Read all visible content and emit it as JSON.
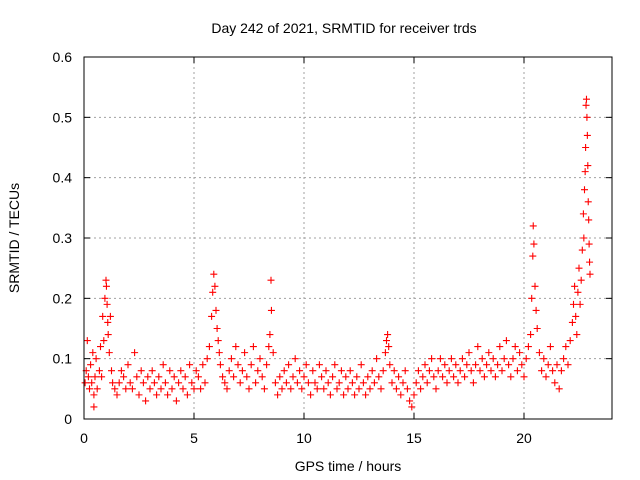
{
  "chart_data": {
    "type": "scatter",
    "title": "Day 242 of 2021, SRMTID for receiver trds",
    "xlabel": "GPS time / hours",
    "ylabel": "SRMTID / TECUs",
    "xlim": [
      0,
      24
    ],
    "ylim": [
      0,
      0.6
    ],
    "x_ticks": [
      0,
      5,
      10,
      15,
      20
    ],
    "x_tick_labels": [
      "0",
      "5",
      "10",
      "15",
      "20"
    ],
    "y_ticks": [
      0,
      0.1,
      0.2,
      0.3,
      0.4,
      0.5,
      0.6
    ],
    "y_tick_labels": [
      "0",
      "0.1",
      "0.2",
      "0.3",
      "0.4",
      "0.5",
      "0.6"
    ],
    "grid": true,
    "marker": "plus",
    "point_color": "#ff0000",
    "series": [
      {
        "name": "SRMTID",
        "points": [
          [
            0.05,
            0.06
          ],
          [
            0.1,
            0.08
          ],
          [
            0.15,
            0.13
          ],
          [
            0.2,
            0.07
          ],
          [
            0.25,
            0.05
          ],
          [
            0.3,
            0.09
          ],
          [
            0.35,
            0.06
          ],
          [
            0.4,
            0.11
          ],
          [
            0.45,
            0.04
          ],
          [
            0.5,
            0.07
          ],
          [
            0.55,
            0.1
          ],
          [
            0.6,
            0.05
          ],
          [
            0.45,
            0.02
          ],
          [
            0.7,
            0.08
          ],
          [
            0.75,
            0.12
          ],
          [
            0.8,
            0.07
          ],
          [
            0.85,
            0.17
          ],
          [
            0.9,
            0.13
          ],
          [
            0.95,
            0.2
          ],
          [
            1.0,
            0.23
          ],
          [
            1.02,
            0.22
          ],
          [
            1.05,
            0.19
          ],
          [
            1.08,
            0.16
          ],
          [
            1.1,
            0.14
          ],
          [
            1.15,
            0.11
          ],
          [
            1.2,
            0.17
          ],
          [
            1.25,
            0.08
          ],
          [
            1.3,
            0.06
          ],
          [
            1.4,
            0.05
          ],
          [
            1.5,
            0.04
          ],
          [
            1.6,
            0.06
          ],
          [
            1.7,
            0.08
          ],
          [
            1.8,
            0.07
          ],
          [
            1.9,
            0.05
          ],
          [
            2.0,
            0.09
          ],
          [
            2.1,
            0.06
          ],
          [
            2.2,
            0.05
          ],
          [
            2.3,
            0.11
          ],
          [
            2.4,
            0.07
          ],
          [
            2.5,
            0.04
          ],
          [
            2.6,
            0.08
          ],
          [
            2.7,
            0.06
          ],
          [
            2.8,
            0.03
          ],
          [
            2.9,
            0.07
          ],
          [
            3.0,
            0.05
          ],
          [
            3.1,
            0.08
          ],
          [
            3.2,
            0.06
          ],
          [
            3.3,
            0.04
          ],
          [
            3.4,
            0.07
          ],
          [
            3.5,
            0.05
          ],
          [
            3.6,
            0.09
          ],
          [
            3.7,
            0.06
          ],
          [
            3.8,
            0.04
          ],
          [
            3.9,
            0.08
          ],
          [
            4.0,
            0.05
          ],
          [
            4.1,
            0.07
          ],
          [
            4.2,
            0.03
          ],
          [
            4.3,
            0.06
          ],
          [
            4.4,
            0.08
          ],
          [
            4.5,
            0.05
          ],
          [
            4.6,
            0.07
          ],
          [
            4.7,
            0.04
          ],
          [
            4.8,
            0.09
          ],
          [
            4.9,
            0.06
          ],
          [
            5.0,
            0.05
          ],
          [
            5.1,
            0.08
          ],
          [
            5.2,
            0.07
          ],
          [
            5.3,
            0.05
          ],
          [
            5.4,
            0.09
          ],
          [
            5.5,
            0.06
          ],
          [
            5.6,
            0.1
          ],
          [
            5.7,
            0.12
          ],
          [
            5.8,
            0.17
          ],
          [
            5.85,
            0.21
          ],
          [
            5.9,
            0.24
          ],
          [
            5.95,
            0.22
          ],
          [
            6.0,
            0.18
          ],
          [
            6.05,
            0.15
          ],
          [
            6.1,
            0.13
          ],
          [
            6.15,
            0.11
          ],
          [
            6.2,
            0.09
          ],
          [
            6.3,
            0.07
          ],
          [
            6.4,
            0.06
          ],
          [
            6.5,
            0.05
          ],
          [
            6.6,
            0.08
          ],
          [
            6.7,
            0.1
          ],
          [
            6.8,
            0.07
          ],
          [
            6.9,
            0.12
          ],
          [
            7.0,
            0.09
          ],
          [
            7.1,
            0.06
          ],
          [
            7.2,
            0.08
          ],
          [
            7.3,
            0.11
          ],
          [
            7.4,
            0.07
          ],
          [
            7.5,
            0.05
          ],
          [
            7.6,
            0.09
          ],
          [
            7.7,
            0.12
          ],
          [
            7.8,
            0.06
          ],
          [
            7.9,
            0.08
          ],
          [
            8.0,
            0.1
          ],
          [
            8.1,
            0.07
          ],
          [
            8.2,
            0.05
          ],
          [
            8.3,
            0.09
          ],
          [
            8.4,
            0.12
          ],
          [
            8.45,
            0.14
          ],
          [
            8.5,
            0.23
          ],
          [
            8.52,
            0.18
          ],
          [
            8.6,
            0.11
          ],
          [
            8.7,
            0.06
          ],
          [
            8.8,
            0.04
          ],
          [
            8.9,
            0.07
          ],
          [
            9.0,
            0.05
          ],
          [
            9.1,
            0.08
          ],
          [
            9.2,
            0.06
          ],
          [
            9.3,
            0.09
          ],
          [
            9.4,
            0.05
          ],
          [
            9.5,
            0.07
          ],
          [
            9.6,
            0.1
          ],
          [
            9.7,
            0.06
          ],
          [
            9.8,
            0.08
          ],
          [
            9.9,
            0.05
          ],
          [
            10.0,
            0.07
          ],
          [
            10.1,
            0.09
          ],
          [
            10.2,
            0.06
          ],
          [
            10.3,
            0.04
          ],
          [
            10.4,
            0.08
          ],
          [
            10.5,
            0.06
          ],
          [
            10.6,
            0.05
          ],
          [
            10.7,
            0.09
          ],
          [
            10.8,
            0.07
          ],
          [
            10.9,
            0.05
          ],
          [
            11.0,
            0.08
          ],
          [
            11.1,
            0.06
          ],
          [
            11.2,
            0.04
          ],
          [
            11.3,
            0.07
          ],
          [
            11.4,
            0.09
          ],
          [
            11.5,
            0.05
          ],
          [
            11.6,
            0.06
          ],
          [
            11.7,
            0.08
          ],
          [
            11.8,
            0.04
          ],
          [
            11.9,
            0.07
          ],
          [
            12.0,
            0.05
          ],
          [
            12.1,
            0.08
          ],
          [
            12.2,
            0.06
          ],
          [
            12.3,
            0.04
          ],
          [
            12.4,
            0.07
          ],
          [
            12.5,
            0.05
          ],
          [
            12.6,
            0.09
          ],
          [
            12.7,
            0.06
          ],
          [
            12.8,
            0.04
          ],
          [
            12.9,
            0.07
          ],
          [
            13.0,
            0.05
          ],
          [
            13.1,
            0.08
          ],
          [
            13.2,
            0.06
          ],
          [
            13.3,
            0.1
          ],
          [
            13.4,
            0.07
          ],
          [
            13.5,
            0.05
          ],
          [
            13.6,
            0.08
          ],
          [
            13.7,
            0.11
          ],
          [
            13.75,
            0.13
          ],
          [
            13.8,
            0.14
          ],
          [
            13.85,
            0.12
          ],
          [
            13.9,
            0.09
          ],
          [
            14.0,
            0.06
          ],
          [
            14.1,
            0.08
          ],
          [
            14.2,
            0.05
          ],
          [
            14.3,
            0.07
          ],
          [
            14.4,
            0.04
          ],
          [
            14.5,
            0.06
          ],
          [
            14.6,
            0.08
          ],
          [
            14.7,
            0.05
          ],
          [
            14.8,
            0.03
          ],
          [
            14.9,
            0.02
          ],
          [
            15.0,
            0.04
          ],
          [
            15.1,
            0.06
          ],
          [
            15.2,
            0.08
          ],
          [
            15.3,
            0.05
          ],
          [
            15.4,
            0.07
          ],
          [
            15.5,
            0.09
          ],
          [
            15.6,
            0.06
          ],
          [
            15.7,
            0.08
          ],
          [
            15.8,
            0.1
          ],
          [
            15.9,
            0.07
          ],
          [
            16.0,
            0.05
          ],
          [
            16.1,
            0.08
          ],
          [
            16.2,
            0.1
          ],
          [
            16.3,
            0.07
          ],
          [
            16.4,
            0.09
          ],
          [
            16.5,
            0.06
          ],
          [
            16.6,
            0.08
          ],
          [
            16.7,
            0.1
          ],
          [
            16.8,
            0.07
          ],
          [
            16.9,
            0.09
          ],
          [
            17.0,
            0.06
          ],
          [
            17.1,
            0.08
          ],
          [
            17.2,
            0.1
          ],
          [
            17.3,
            0.07
          ],
          [
            17.4,
            0.09
          ],
          [
            17.5,
            0.11
          ],
          [
            17.6,
            0.08
          ],
          [
            17.7,
            0.06
          ],
          [
            17.8,
            0.09
          ],
          [
            17.9,
            0.12
          ],
          [
            18.0,
            0.08
          ],
          [
            18.1,
            0.1
          ],
          [
            18.2,
            0.07
          ],
          [
            18.3,
            0.09
          ],
          [
            18.4,
            0.11
          ],
          [
            18.5,
            0.08
          ],
          [
            18.6,
            0.1
          ],
          [
            18.7,
            0.07
          ],
          [
            18.8,
            0.09
          ],
          [
            18.9,
            0.12
          ],
          [
            19.0,
            0.08
          ],
          [
            19.1,
            0.1
          ],
          [
            19.2,
            0.13
          ],
          [
            19.3,
            0.09
          ],
          [
            19.4,
            0.07
          ],
          [
            19.5,
            0.1
          ],
          [
            19.6,
            0.12
          ],
          [
            19.7,
            0.08
          ],
          [
            19.8,
            0.11
          ],
          [
            19.9,
            0.09
          ],
          [
            20.0,
            0.07
          ],
          [
            20.1,
            0.1
          ],
          [
            20.2,
            0.12
          ],
          [
            20.3,
            0.14
          ],
          [
            20.35,
            0.2
          ],
          [
            20.4,
            0.27
          ],
          [
            20.42,
            0.32
          ],
          [
            20.45,
            0.29
          ],
          [
            20.5,
            0.22
          ],
          [
            20.55,
            0.18
          ],
          [
            20.6,
            0.15
          ],
          [
            20.7,
            0.11
          ],
          [
            20.8,
            0.08
          ],
          [
            20.9,
            0.1
          ],
          [
            21.0,
            0.07
          ],
          [
            21.1,
            0.09
          ],
          [
            21.2,
            0.12
          ],
          [
            21.3,
            0.08
          ],
          [
            21.4,
            0.06
          ],
          [
            21.5,
            0.09
          ],
          [
            21.6,
            0.05
          ],
          [
            21.7,
            0.08
          ],
          [
            21.8,
            0.1
          ],
          [
            21.9,
            0.12
          ],
          [
            22.0,
            0.09
          ],
          [
            22.1,
            0.13
          ],
          [
            22.2,
            0.16
          ],
          [
            22.25,
            0.19
          ],
          [
            22.3,
            0.22
          ],
          [
            22.35,
            0.17
          ],
          [
            22.4,
            0.14
          ],
          [
            22.45,
            0.21
          ],
          [
            22.5,
            0.25
          ],
          [
            22.55,
            0.19
          ],
          [
            22.6,
            0.23
          ],
          [
            22.65,
            0.28
          ],
          [
            22.7,
            0.34
          ],
          [
            22.72,
            0.3
          ],
          [
            22.75,
            0.38
          ],
          [
            22.78,
            0.41
          ],
          [
            22.8,
            0.45
          ],
          [
            22.82,
            0.52
          ],
          [
            22.84,
            0.53
          ],
          [
            22.86,
            0.5
          ],
          [
            22.88,
            0.47
          ],
          [
            22.9,
            0.42
          ],
          [
            22.92,
            0.36
          ],
          [
            22.94,
            0.33
          ],
          [
            22.96,
            0.29
          ],
          [
            22.98,
            0.26
          ],
          [
            23.0,
            0.24
          ]
        ]
      }
    ]
  }
}
